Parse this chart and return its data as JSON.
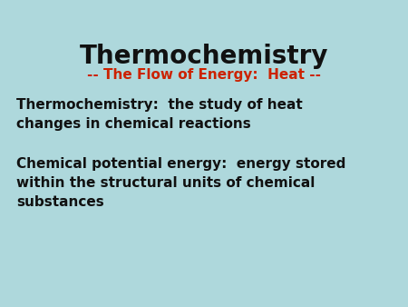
{
  "background_color": "#aed8dc",
  "title": "Thermochemistry",
  "subtitle": "-- The Flow of Energy:  Heat --",
  "title_color": "#111111",
  "subtitle_color": "#cc2200",
  "title_fontsize": 20,
  "subtitle_fontsize": 11,
  "body_fontsize": 11,
  "body_color": "#111111",
  "line1": "Thermochemistry:  the study of heat\nchanges in chemical reactions",
  "line2": "Chemical potential energy:  energy stored\nwithin the structural units of chemical\nsubstances"
}
